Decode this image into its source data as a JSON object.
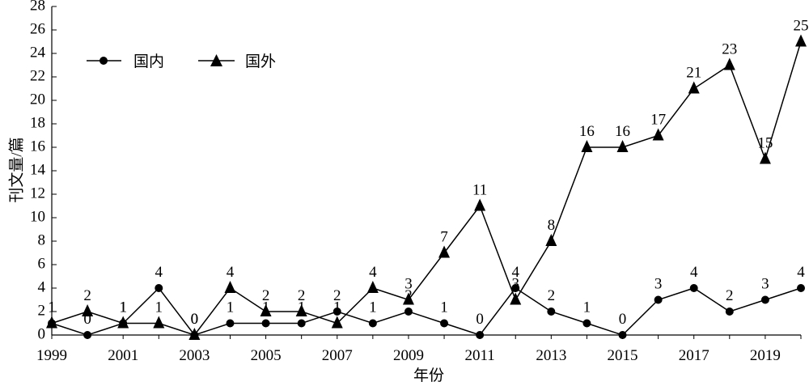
{
  "chart_data": {
    "type": "line",
    "title": "",
    "xlabel": "年份",
    "ylabel": "刊文量/篇",
    "x": [
      1999,
      2000,
      2001,
      2002,
      2003,
      2004,
      2005,
      2006,
      2007,
      2008,
      2009,
      2010,
      2011,
      2012,
      2013,
      2014,
      2015,
      2016,
      2017,
      2018,
      2019,
      2020
    ],
    "x_tick_labels": [
      "1999",
      "2001",
      "2003",
      "2005",
      "2007",
      "2009",
      "2011",
      "2013",
      "2015",
      "2017",
      "2019"
    ],
    "y_tick_labels": [
      "0",
      "2",
      "4",
      "6",
      "8",
      "10",
      "12",
      "14",
      "16",
      "18",
      "20",
      "22",
      "24",
      "26",
      "28"
    ],
    "xlim": [
      1999,
      2020
    ],
    "ylim": [
      0,
      28
    ],
    "grid": false,
    "legend_position": "top-left",
    "series": [
      {
        "name": "国内",
        "marker": "circle",
        "values": [
          1,
          0,
          1,
          4,
          0,
          1,
          1,
          1,
          2,
          1,
          2,
          1,
          0,
          4,
          2,
          1,
          0,
          3,
          4,
          2,
          3,
          4
        ]
      },
      {
        "name": "国外",
        "marker": "triangle",
        "values": [
          1,
          2,
          1,
          1,
          0,
          4,
          2,
          2,
          1,
          4,
          3,
          7,
          11,
          3,
          8,
          16,
          16,
          17,
          21,
          23,
          15,
          25
        ]
      }
    ],
    "colors": {
      "line": "#000000",
      "background": "#ffffff"
    }
  }
}
